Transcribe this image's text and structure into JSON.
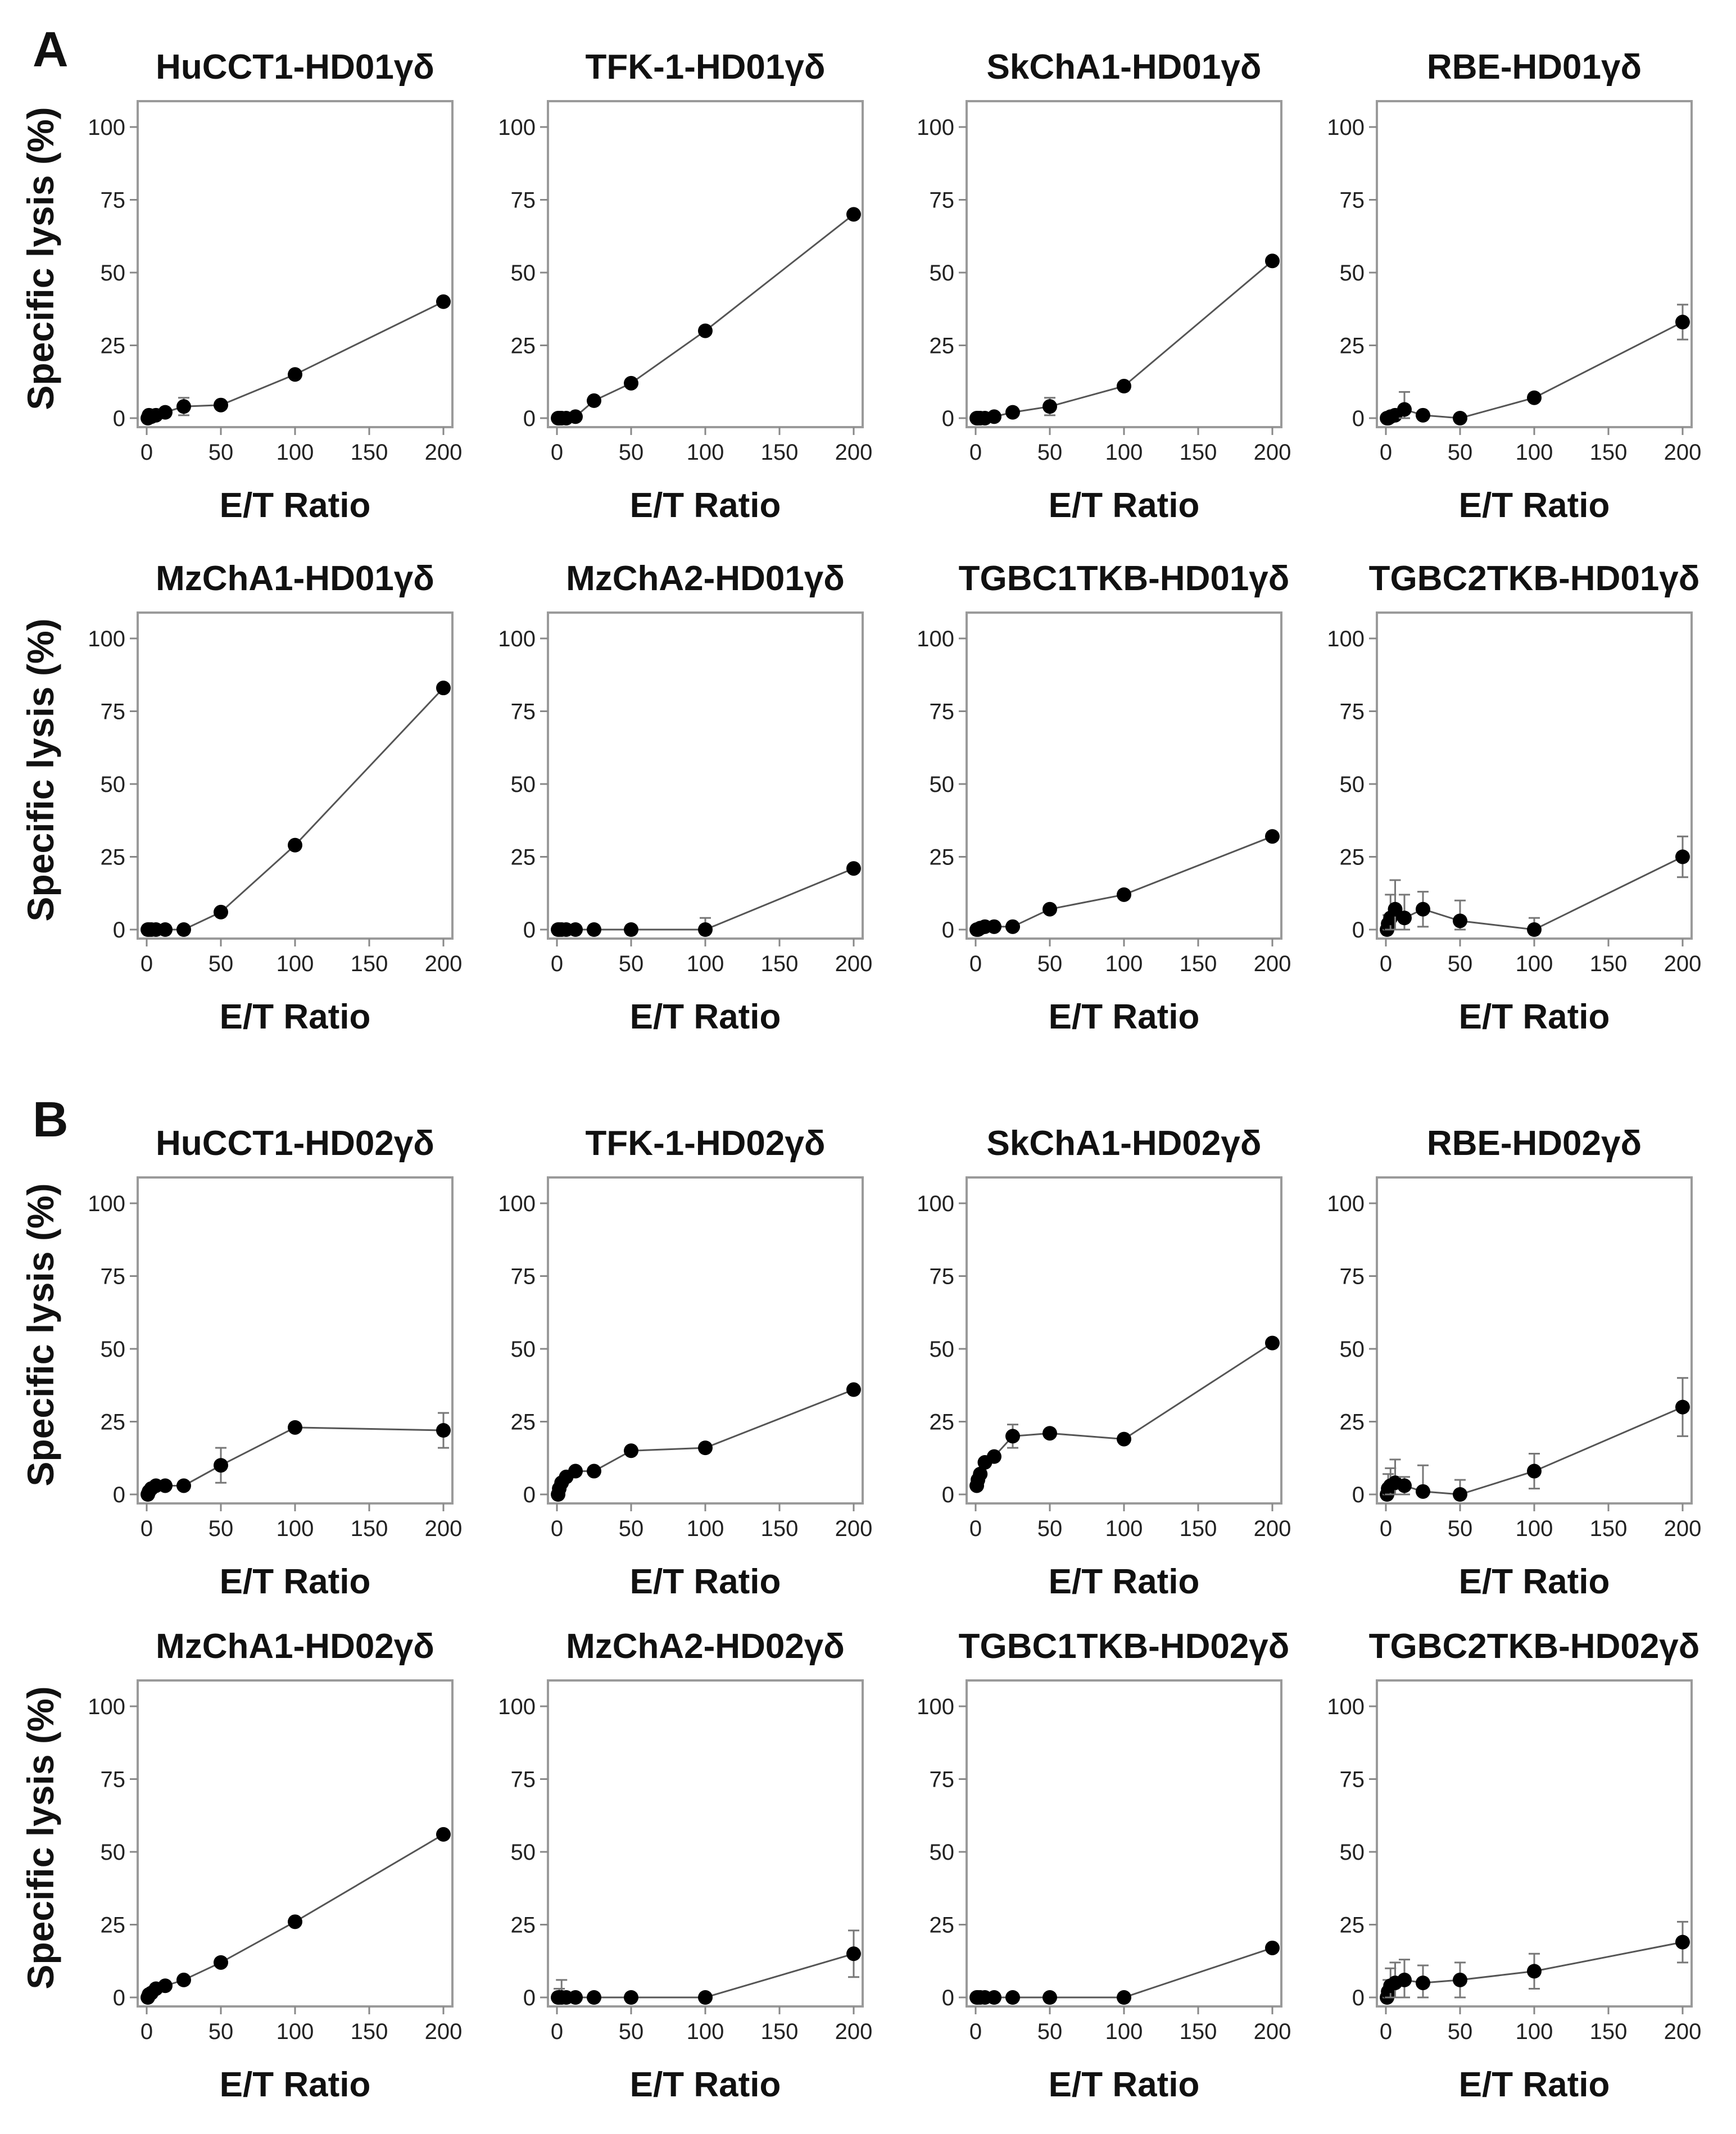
{
  "panel_labels": [
    "A",
    "B"
  ],
  "y_axis_label": "Specific lysis (%)",
  "x_axis_label": "E/T Ratio",
  "chart_data": [
    {
      "type": "line",
      "panel": "A",
      "title": "HuCCT1-HD01γδ",
      "xlabel": "E/T Ratio",
      "ylabel": "Specific lysis (%)",
      "xlim": [
        0,
        200
      ],
      "ylim": [
        0,
        100
      ],
      "xticks": [
        0,
        50,
        100,
        150,
        200
      ],
      "yticks": [
        0,
        25,
        50,
        75,
        100
      ],
      "x": [
        0.78,
        1.56,
        3.125,
        6.25,
        12.5,
        25,
        50,
        100,
        200
      ],
      "y": [
        0,
        1,
        0.5,
        1,
        2,
        4,
        4.5,
        15,
        40
      ],
      "yerr": [
        0.5,
        1,
        0.5,
        1,
        1,
        3,
        1,
        1,
        1
      ]
    },
    {
      "type": "line",
      "panel": "A",
      "title": "TFK-1-HD01γδ",
      "xlabel": "E/T Ratio",
      "ylabel": "",
      "xlim": [
        0,
        200
      ],
      "ylim": [
        0,
        100
      ],
      "xticks": [
        0,
        50,
        100,
        150,
        200
      ],
      "yticks": [
        0,
        25,
        50,
        75,
        100
      ],
      "x": [
        0.78,
        1.56,
        3.125,
        6.25,
        12.5,
        25,
        50,
        100,
        200
      ],
      "y": [
        0,
        0,
        0,
        0,
        0.5,
        6,
        12,
        30,
        70
      ],
      "yerr": [
        0.5,
        0.5,
        0.5,
        0.5,
        0.5,
        1,
        1,
        1,
        1
      ]
    },
    {
      "type": "line",
      "panel": "A",
      "title": "SkChA1-HD01γδ",
      "xlabel": "E/T Ratio",
      "ylabel": "",
      "xlim": [
        0,
        200
      ],
      "ylim": [
        0,
        100
      ],
      "xticks": [
        0,
        50,
        100,
        150,
        200
      ],
      "yticks": [
        0,
        25,
        50,
        75,
        100
      ],
      "x": [
        0.78,
        1.56,
        3.125,
        6.25,
        12.5,
        25,
        50,
        100,
        200
      ],
      "y": [
        0,
        0,
        0,
        0,
        0.5,
        2,
        4,
        11,
        54
      ],
      "yerr": [
        0.5,
        0.5,
        0.5,
        0.5,
        0.5,
        1,
        3,
        1,
        1
      ]
    },
    {
      "type": "line",
      "panel": "A",
      "title": "RBE-HD01γδ",
      "xlabel": "E/T Ratio",
      "ylabel": "",
      "xlim": [
        0,
        200
      ],
      "ylim": [
        0,
        100
      ],
      "xticks": [
        0,
        50,
        100,
        150,
        200
      ],
      "yticks": [
        0,
        25,
        50,
        75,
        100
      ],
      "x": [
        0.78,
        1.56,
        3.125,
        6.25,
        12.5,
        25,
        50,
        100,
        200
      ],
      "y": [
        0,
        0,
        0.5,
        1,
        3,
        1,
        0,
        7,
        33
      ],
      "yerr": [
        0.5,
        0.5,
        1,
        1,
        6,
        1,
        0.5,
        1,
        6
      ]
    },
    {
      "type": "line",
      "panel": "A",
      "title": "MzChA1-HD01γδ",
      "xlabel": "E/T Ratio",
      "ylabel": "Specific lysis (%)",
      "xlim": [
        0,
        200
      ],
      "ylim": [
        0,
        100
      ],
      "xticks": [
        0,
        50,
        100,
        150,
        200
      ],
      "yticks": [
        0,
        25,
        50,
        75,
        100
      ],
      "x": [
        0.78,
        1.56,
        3.125,
        6.25,
        12.5,
        25,
        50,
        100,
        200
      ],
      "y": [
        0,
        0,
        0,
        0,
        0,
        0,
        6,
        29,
        83
      ],
      "yerr": [
        0.5,
        0.5,
        0.5,
        0.5,
        0.5,
        0.5,
        1,
        1,
        1
      ]
    },
    {
      "type": "line",
      "panel": "A",
      "title": "MzChA2-HD01γδ",
      "xlabel": "E/T Ratio",
      "ylabel": "",
      "xlim": [
        0,
        200
      ],
      "ylim": [
        0,
        100
      ],
      "xticks": [
        0,
        50,
        100,
        150,
        200
      ],
      "yticks": [
        0,
        25,
        50,
        75,
        100
      ],
      "x": [
        0.78,
        1.56,
        3.125,
        6.25,
        12.5,
        25,
        50,
        100,
        200
      ],
      "y": [
        0,
        0,
        0,
        0,
        0,
        0,
        0,
        0,
        21
      ],
      "yerr": [
        0.5,
        0.5,
        0.5,
        0.5,
        0.5,
        0.5,
        0.5,
        4,
        1
      ]
    },
    {
      "type": "line",
      "panel": "A",
      "title": "TGBC1TKB-HD01γδ",
      "xlabel": "E/T Ratio",
      "ylabel": "",
      "xlim": [
        0,
        200
      ],
      "ylim": [
        0,
        100
      ],
      "xticks": [
        0,
        50,
        100,
        150,
        200
      ],
      "yticks": [
        0,
        25,
        50,
        75,
        100
      ],
      "x": [
        0.78,
        1.56,
        3.125,
        6.25,
        12.5,
        25,
        50,
        100,
        200
      ],
      "y": [
        0,
        0,
        0.5,
        1,
        1,
        1,
        7,
        12,
        32
      ],
      "yerr": [
        0.5,
        0.5,
        0.5,
        0.5,
        0.5,
        0.5,
        1,
        1,
        1
      ]
    },
    {
      "type": "line",
      "panel": "A",
      "title": "TGBC2TKB-HD01γδ",
      "xlabel": "E/T Ratio",
      "ylabel": "",
      "xlim": [
        0,
        200
      ],
      "ylim": [
        0,
        100
      ],
      "xticks": [
        0,
        50,
        100,
        150,
        200
      ],
      "yticks": [
        0,
        25,
        50,
        75,
        100
      ],
      "x": [
        0.78,
        1.56,
        3.125,
        6.25,
        12.5,
        25,
        50,
        100,
        200
      ],
      "y": [
        0,
        2,
        4,
        7,
        4,
        7,
        3,
        0,
        25
      ],
      "yerr": [
        1,
        3,
        8,
        10,
        8,
        6,
        7,
        4,
        7
      ]
    },
    {
      "type": "line",
      "panel": "B",
      "title": "HuCCT1-HD02γδ",
      "xlabel": "E/T Ratio",
      "ylabel": "Specific lysis (%)",
      "xlim": [
        0,
        200
      ],
      "ylim": [
        0,
        100
      ],
      "xticks": [
        0,
        50,
        100,
        150,
        200
      ],
      "yticks": [
        0,
        25,
        50,
        75,
        100
      ],
      "x": [
        0.78,
        1.56,
        3.125,
        6.25,
        12.5,
        25,
        50,
        100,
        200
      ],
      "y": [
        0,
        1,
        2,
        3,
        3,
        3,
        10,
        23,
        22
      ],
      "yerr": [
        0.5,
        1,
        1,
        1,
        1,
        1,
        6,
        1,
        6
      ]
    },
    {
      "type": "line",
      "panel": "B",
      "title": "TFK-1-HD02γδ",
      "xlabel": "E/T Ratio",
      "ylabel": "",
      "xlim": [
        0,
        200
      ],
      "ylim": [
        0,
        100
      ],
      "xticks": [
        0,
        50,
        100,
        150,
        200
      ],
      "yticks": [
        0,
        25,
        50,
        75,
        100
      ],
      "x": [
        0.78,
        1.56,
        3.125,
        6.25,
        12.5,
        25,
        50,
        100,
        200
      ],
      "y": [
        0,
        2,
        4,
        6,
        8,
        8,
        15,
        16,
        36
      ],
      "yerr": [
        0.5,
        1,
        1,
        1,
        1,
        1,
        1,
        1,
        1
      ]
    },
    {
      "type": "line",
      "panel": "B",
      "title": "SkChA1-HD02γδ",
      "xlabel": "E/T Ratio",
      "ylabel": "",
      "xlim": [
        0,
        200
      ],
      "ylim": [
        0,
        100
      ],
      "xticks": [
        0,
        50,
        100,
        150,
        200
      ],
      "yticks": [
        0,
        25,
        50,
        75,
        100
      ],
      "x": [
        0.78,
        1.56,
        3.125,
        6.25,
        12.5,
        25,
        50,
        100,
        200
      ],
      "y": [
        3,
        5,
        7,
        11,
        13,
        20,
        21,
        19,
        52
      ],
      "yerr": [
        1,
        1,
        1,
        1,
        1,
        4,
        1,
        1,
        1
      ]
    },
    {
      "type": "line",
      "panel": "B",
      "title": "RBE-HD02γδ",
      "xlabel": "E/T Ratio",
      "ylabel": "",
      "xlim": [
        0,
        200
      ],
      "ylim": [
        0,
        100
      ],
      "xticks": [
        0,
        50,
        100,
        150,
        200
      ],
      "yticks": [
        0,
        25,
        50,
        75,
        100
      ],
      "x": [
        0.78,
        1.56,
        3.125,
        6.25,
        12.5,
        25,
        50,
        100,
        200
      ],
      "y": [
        0,
        2,
        3,
        4,
        3,
        1,
        0,
        8,
        30
      ],
      "yerr": [
        1,
        5,
        6,
        8,
        3,
        9,
        5,
        6,
        10
      ]
    },
    {
      "type": "line",
      "panel": "B",
      "title": "MzChA1-HD02γδ",
      "xlabel": "E/T Ratio",
      "ylabel": "Specific lysis (%)",
      "xlim": [
        0,
        200
      ],
      "ylim": [
        0,
        100
      ],
      "xticks": [
        0,
        50,
        100,
        150,
        200
      ],
      "yticks": [
        0,
        25,
        50,
        75,
        100
      ],
      "x": [
        0.78,
        1.56,
        3.125,
        6.25,
        12.5,
        25,
        50,
        100,
        200
      ],
      "y": [
        0,
        1,
        1.5,
        3,
        4,
        6,
        12,
        26,
        56
      ],
      "yerr": [
        0.5,
        0.5,
        0.5,
        0.5,
        0.5,
        0.5,
        1,
        1,
        1
      ]
    },
    {
      "type": "line",
      "panel": "B",
      "title": "MzChA2-HD02γδ",
      "xlabel": "E/T Ratio",
      "ylabel": "",
      "xlim": [
        0,
        200
      ],
      "ylim": [
        0,
        100
      ],
      "xticks": [
        0,
        50,
        100,
        150,
        200
      ],
      "yticks": [
        0,
        25,
        50,
        75,
        100
      ],
      "x": [
        0.78,
        1.56,
        3.125,
        6.25,
        12.5,
        25,
        50,
        100,
        200
      ],
      "y": [
        0,
        0,
        0,
        0,
        0,
        0,
        0,
        0,
        15
      ],
      "yerr": [
        0.5,
        3,
        6,
        0.5,
        0.5,
        0.5,
        0.5,
        0.5,
        8
      ]
    },
    {
      "type": "line",
      "panel": "B",
      "title": "TGBC1TKB-HD02γδ",
      "xlabel": "E/T Ratio",
      "ylabel": "",
      "xlim": [
        0,
        200
      ],
      "ylim": [
        0,
        100
      ],
      "xticks": [
        0,
        50,
        100,
        150,
        200
      ],
      "yticks": [
        0,
        25,
        50,
        75,
        100
      ],
      "x": [
        0.78,
        1.56,
        3.125,
        6.25,
        12.5,
        25,
        50,
        100,
        200
      ],
      "y": [
        0,
        0,
        0,
        0,
        0,
        0,
        0,
        0,
        17
      ],
      "yerr": [
        0.5,
        0.5,
        0.5,
        0.5,
        0.5,
        0.5,
        0.5,
        0.5,
        1
      ]
    },
    {
      "type": "line",
      "panel": "B",
      "title": "TGBC2TKB-HD02γδ",
      "xlabel": "E/T Ratio",
      "ylabel": "",
      "xlim": [
        0,
        200
      ],
      "ylim": [
        0,
        100
      ],
      "xticks": [
        0,
        50,
        100,
        150,
        200
      ],
      "yticks": [
        0,
        25,
        50,
        75,
        100
      ],
      "x": [
        0.78,
        1.56,
        3.125,
        6.25,
        12.5,
        25,
        50,
        100,
        200
      ],
      "y": [
        0,
        2,
        4,
        5,
        6,
        5,
        6,
        9,
        19
      ],
      "yerr": [
        2,
        4,
        6,
        7,
        7,
        6,
        6,
        6,
        7
      ]
    }
  ]
}
